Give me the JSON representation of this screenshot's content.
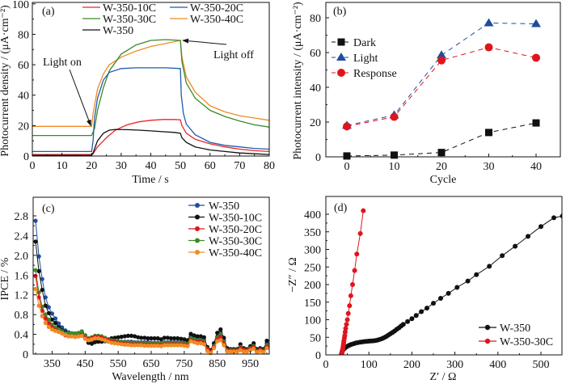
{
  "chart_data": [
    {
      "panel": "a",
      "type": "line",
      "panel_label": "(a)",
      "xlabel": "Time / s",
      "ylabel": "Photocurrent density / (μA·cm⁻²)",
      "xlim": [
        0,
        80
      ],
      "ylim": [
        0,
        110
      ],
      "xticks": [
        0,
        10,
        20,
        30,
        40,
        50,
        60,
        70,
        80
      ],
      "yticks": [
        0,
        20,
        40,
        60,
        80,
        100
      ],
      "legend_position": "top",
      "annotations": [
        {
          "text": "Light on",
          "x": 20,
          "y": 20
        },
        {
          "text": "Light off",
          "x": 50,
          "y": 76
        }
      ],
      "series": [
        {
          "name": "W-350-10C",
          "color": "#e8262a",
          "x": [
            0,
            20,
            20.5,
            22,
            25,
            28,
            32,
            36,
            40,
            44,
            48,
            50,
            50.5,
            52,
            55,
            60,
            65,
            70,
            75,
            80
          ],
          "y": [
            1,
            1,
            1.5,
            6,
            12,
            17,
            20.5,
            22.5,
            23.5,
            24,
            24,
            23.8,
            20,
            15,
            11,
            8,
            6,
            4.5,
            3.5,
            3
          ]
        },
        {
          "name": "W-350-20C",
          "color": "#1f5cac",
          "x": [
            0,
            20,
            20.5,
            21,
            22,
            24,
            26,
            30,
            35,
            40,
            45,
            50,
            50.3,
            51,
            52,
            55,
            60,
            65,
            70,
            75,
            80
          ],
          "y": [
            3,
            3,
            10,
            25,
            38,
            50,
            55,
            57.5,
            58,
            58,
            58,
            57.5,
            40,
            28,
            21,
            14,
            9,
            7,
            6,
            5,
            4.5
          ]
        },
        {
          "name": "W-350-30C",
          "color": "#3a8a2a",
          "x": [
            0,
            20,
            21,
            22,
            24,
            26,
            30,
            35,
            40,
            45,
            50,
            50.5,
            52,
            55,
            60,
            65,
            70,
            75,
            80
          ],
          "y": [
            13.5,
            13.5,
            18,
            30,
            45,
            56,
            67,
            73,
            76,
            76.5,
            76,
            62,
            48,
            38,
            30,
            26,
            23,
            20.5,
            19
          ]
        },
        {
          "name": "W-350-40C",
          "color": "#f08a24",
          "x": [
            0,
            20,
            20.5,
            22,
            24,
            26,
            30,
            35,
            40,
            45,
            50,
            50.5,
            52,
            55,
            60,
            65,
            70,
            75,
            80
          ],
          "y": [
            19.5,
            19.5,
            28,
            44,
            54,
            60,
            65,
            69,
            72,
            74,
            76,
            65,
            52,
            42,
            33,
            29,
            26.5,
            25,
            23.5
          ]
        },
        {
          "name": "W-350",
          "color": "#111111",
          "x": [
            0,
            20,
            20.5,
            22,
            24,
            26,
            28,
            32,
            36,
            40,
            44,
            48,
            50,
            50.5,
            52,
            55,
            60,
            65,
            70,
            75,
            80
          ],
          "y": [
            0.5,
            0.5,
            2,
            10,
            15,
            17,
            17.5,
            17.3,
            17,
            16.5,
            16,
            15.5,
            15,
            12,
            9,
            6,
            4,
            3,
            2,
            1.5,
            1
          ]
        }
      ]
    },
    {
      "panel": "b",
      "type": "line",
      "panel_label": "(b)",
      "xlabel": "Cycle",
      "ylabel": "Photocurrent intensity / (μA·cm⁻²)",
      "xlim": [
        -4,
        45
      ],
      "ylim": [
        0,
        90
      ],
      "xticks": [
        0,
        10,
        20,
        30,
        40
      ],
      "yticks": [
        0,
        20,
        40,
        60,
        80
      ],
      "legend_position": "top-left",
      "categories": [
        0,
        10,
        20,
        30,
        40
      ],
      "series": [
        {
          "name": "Dark",
          "color": "#111111",
          "marker": "square",
          "values": [
            0.5,
            1,
            2.5,
            14,
            19.5
          ]
        },
        {
          "name": "Light",
          "color": "#1f4e9c",
          "marker": "triangle",
          "values": [
            18,
            24,
            58.5,
            77,
            76.5
          ]
        },
        {
          "name": "Response",
          "color": "#e0141e",
          "marker": "circle",
          "values": [
            17.5,
            23,
            55.5,
            63,
            57
          ]
        }
      ]
    },
    {
      "panel": "c",
      "type": "line",
      "panel_label": "(c)",
      "xlabel": "Wavelength / nm",
      "ylabel": "IPCE / %",
      "xlim": [
        295,
        1005
      ],
      "ylim": [
        0,
        2.95
      ],
      "xticks": [
        350,
        450,
        550,
        650,
        750,
        850,
        950
      ],
      "yticks": [
        0,
        0.4,
        0.8,
        1.2,
        1.6,
        2.0,
        2.4,
        2.8
      ],
      "ytick_labels": [
        "0",
        "0.4",
        "0.8",
        "1.2",
        "1.6",
        "2.0",
        "2.4",
        "2.8"
      ],
      "legend_position": "top-right",
      "x": [
        300,
        310,
        320,
        330,
        340,
        350,
        360,
        370,
        380,
        390,
        400,
        410,
        420,
        430,
        440,
        450,
        460,
        470,
        480,
        490,
        500,
        510,
        520,
        530,
        540,
        550,
        560,
        570,
        580,
        590,
        600,
        610,
        620,
        630,
        640,
        650,
        660,
        670,
        680,
        690,
        700,
        710,
        720,
        730,
        740,
        750,
        760,
        770,
        780,
        790,
        800,
        810,
        820,
        830,
        840,
        850,
        860,
        870,
        880,
        890,
        900,
        910,
        920,
        930,
        940,
        950,
        960,
        970,
        980,
        990,
        1000
      ],
      "series": [
        {
          "name": "W-350",
          "color": "#1f4e9c",
          "values": [
            2.7,
            1.98,
            1.52,
            1.15,
            0.95,
            0.82,
            0.72,
            0.62,
            0.54,
            0.48,
            0.44,
            0.42,
            0.41,
            0.42,
            0.44,
            0.38,
            0.24,
            0.22,
            0.26,
            0.27,
            0.26,
            0.26,
            0.27,
            0.27,
            0.26,
            0.25,
            0.25,
            0.25,
            0.25,
            0.25,
            0.24,
            0.24,
            0.24,
            0.24,
            0.24,
            0.23,
            0.23,
            0.23,
            0.22,
            0.24,
            0.24,
            0.24,
            0.24,
            0.24,
            0.24,
            0.23,
            0.23,
            0.36,
            0.32,
            0.3,
            0.3,
            0.28,
            0.12,
            0.05,
            0.18,
            0.35,
            0.44,
            0.28,
            0.1,
            0.08,
            0.08,
            0.08,
            0.15,
            0.1,
            0.08,
            0.13,
            0.18,
            0.08,
            0.1,
            0.08,
            0.22
          ]
        },
        {
          "name": "W-350-10C",
          "color": "#111111",
          "values": [
            2.28,
            1.68,
            1.3,
            0.98,
            0.83,
            0.7,
            0.63,
            0.54,
            0.48,
            0.44,
            0.42,
            0.42,
            0.41,
            0.42,
            0.44,
            0.38,
            0.23,
            0.21,
            0.24,
            0.25,
            0.25,
            0.28,
            0.3,
            0.32,
            0.33,
            0.34,
            0.35,
            0.36,
            0.37,
            0.37,
            0.36,
            0.34,
            0.33,
            0.33,
            0.32,
            0.32,
            0.32,
            0.32,
            0.3,
            0.33,
            0.33,
            0.32,
            0.32,
            0.32,
            0.31,
            0.3,
            0.28,
            0.41,
            0.38,
            0.36,
            0.36,
            0.34,
            0.14,
            0.08,
            0.22,
            0.43,
            0.5,
            0.33,
            0.12,
            0.1,
            0.1,
            0.1,
            0.2,
            0.12,
            0.1,
            0.16,
            0.22,
            0.1,
            0.12,
            0.1,
            0.27
          ]
        },
        {
          "name": "W-350-20C",
          "color": "#e0141e",
          "values": [
            1.58,
            1.15,
            0.88,
            0.72,
            0.62,
            0.54,
            0.49,
            0.45,
            0.42,
            0.38,
            0.36,
            0.36,
            0.35,
            0.36,
            0.38,
            0.33,
            0.3,
            0.33,
            0.35,
            0.35,
            0.33,
            0.3,
            0.28,
            0.26,
            0.24,
            0.23,
            0.22,
            0.21,
            0.21,
            0.2,
            0.2,
            0.2,
            0.2,
            0.19,
            0.19,
            0.19,
            0.19,
            0.19,
            0.18,
            0.2,
            0.2,
            0.2,
            0.2,
            0.2,
            0.2,
            0.19,
            0.18,
            0.28,
            0.26,
            0.25,
            0.25,
            0.23,
            0.1,
            0.04,
            0.14,
            0.3,
            0.35,
            0.22,
            0.07,
            0.07,
            0.07,
            0.07,
            0.12,
            0.08,
            0.07,
            0.1,
            0.14,
            0.06,
            0.08,
            0.06,
            0.15
          ]
        },
        {
          "name": "W-350-30C",
          "color": "#3a8a2a",
          "values": [
            1.7,
            1.25,
            0.96,
            0.8,
            0.7,
            0.6,
            0.54,
            0.5,
            0.46,
            0.42,
            0.42,
            0.42,
            0.42,
            0.43,
            0.46,
            0.38,
            0.32,
            0.34,
            0.37,
            0.37,
            0.36,
            0.33,
            0.3,
            0.28,
            0.27,
            0.26,
            0.25,
            0.24,
            0.24,
            0.23,
            0.23,
            0.23,
            0.23,
            0.22,
            0.22,
            0.22,
            0.22,
            0.22,
            0.21,
            0.23,
            0.23,
            0.23,
            0.23,
            0.23,
            0.23,
            0.22,
            0.21,
            0.32,
            0.3,
            0.28,
            0.28,
            0.26,
            0.11,
            0.05,
            0.16,
            0.33,
            0.4,
            0.25,
            0.08,
            0.08,
            0.08,
            0.08,
            0.14,
            0.09,
            0.08,
            0.12,
            0.16,
            0.07,
            0.09,
            0.07,
            0.18
          ]
        },
        {
          "name": "W-350-40C",
          "color": "#f08a24",
          "values": [
            1.32,
            0.98,
            0.77,
            0.63,
            0.55,
            0.5,
            0.47,
            0.45,
            0.42,
            0.39,
            0.36,
            0.36,
            0.35,
            0.36,
            0.37,
            0.31,
            0.28,
            0.3,
            0.32,
            0.32,
            0.3,
            0.28,
            0.25,
            0.23,
            0.22,
            0.21,
            0.2,
            0.19,
            0.19,
            0.18,
            0.18,
            0.18,
            0.18,
            0.17,
            0.17,
            0.17,
            0.17,
            0.17,
            0.16,
            0.18,
            0.18,
            0.18,
            0.18,
            0.18,
            0.18,
            0.17,
            0.16,
            0.26,
            0.24,
            0.22,
            0.22,
            0.2,
            0.06,
            0.02,
            0.12,
            0.26,
            0.28,
            0.18,
            0.05,
            0.05,
            0.05,
            0.05,
            0.08,
            0.05,
            0.05,
            0.08,
            0.11,
            0.04,
            0.06,
            0.04,
            0.12
          ]
        }
      ]
    },
    {
      "panel": "d",
      "type": "scatter",
      "panel_label": "(d)",
      "xlabel": "Z′ / Ω",
      "ylabel": "−Z″ / Ω",
      "xlim": [
        0,
        550
      ],
      "ylim": [
        0,
        425
      ],
      "xticks": [
        0,
        100,
        200,
        300,
        400,
        500
      ],
      "yticks": [
        0,
        50,
        100,
        150,
        200,
        250,
        300,
        350,
        400
      ],
      "legend_position": "bottom-right",
      "series": [
        {
          "name": "W-350",
          "color": "#111111",
          "x": [
            36,
            37,
            38,
            40,
            42,
            45,
            48,
            52,
            56,
            60,
            65,
            70,
            75,
            80,
            85,
            90,
            95,
            100,
            105,
            110,
            115,
            120,
            125,
            130,
            135,
            140,
            145,
            150,
            155,
            160,
            165,
            170,
            175,
            180,
            190,
            200,
            210,
            222,
            235,
            250,
            267,
            285,
            305,
            330,
            350,
            380,
            410,
            440,
            470,
            500,
            530,
            550
          ],
          "y": [
            2,
            6,
            10,
            14,
            17,
            20,
            23,
            26,
            28,
            30,
            32,
            34,
            35,
            36,
            37,
            38,
            38.5,
            39,
            39.5,
            40,
            41,
            42,
            44,
            46,
            49,
            52,
            56,
            60,
            64,
            68,
            73,
            77,
            82,
            87,
            95,
            103,
            112,
            123,
            133,
            147,
            161,
            175,
            192,
            210,
            228,
            252,
            282,
            309,
            337,
            365,
            390,
            395
          ]
        },
        {
          "name": "W-350-30C",
          "color": "#e0141e",
          "x": [
            36,
            37,
            37.5,
            38,
            38.5,
            39,
            39.5,
            40,
            40.5,
            41,
            41.5,
            42,
            43,
            44,
            45,
            46,
            48,
            50,
            52,
            55,
            58,
            62,
            67,
            72,
            80,
            87
          ],
          "y": [
            0,
            3,
            6,
            9,
            12,
            15,
            18,
            22,
            26,
            30,
            35,
            40,
            48,
            55,
            65,
            75,
            87,
            100,
            118,
            140,
            168,
            200,
            240,
            287,
            345,
            410
          ]
        }
      ]
    }
  ]
}
